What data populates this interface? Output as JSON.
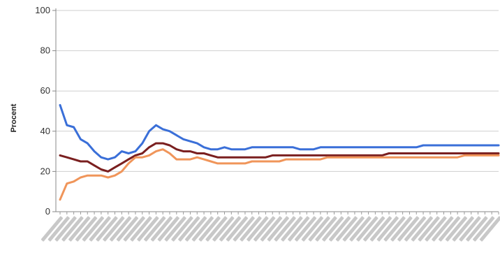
{
  "chart_data": {
    "type": "line",
    "title": "",
    "xlabel": "",
    "ylabel": "Procent",
    "ylim": [
      0,
      100
    ],
    "yticks": [
      "0",
      "20",
      "40",
      "60",
      "80",
      "100"
    ],
    "grid": true,
    "legend": "none",
    "x_count": 65,
    "x_labels_note_hidden": true,
    "series": [
      {
        "color": "#3a6fd8",
        "values": [
          53,
          43,
          42,
          36,
          34,
          30,
          27,
          26,
          27,
          30,
          29,
          30,
          34,
          40,
          43,
          41,
          40,
          38,
          36,
          35,
          34,
          32,
          31,
          31,
          32,
          31,
          31,
          31,
          32,
          32,
          32,
          32,
          32,
          32,
          32,
          31,
          31,
          31,
          32,
          32,
          32,
          32,
          32,
          32,
          32,
          32,
          32,
          32,
          32,
          32,
          32,
          32,
          32,
          33,
          33,
          33,
          33,
          33,
          33,
          33,
          33,
          33,
          33,
          33,
          33
        ]
      },
      {
        "color": "#7a1f1f",
        "values": [
          28,
          27,
          26,
          25,
          25,
          23,
          21,
          20,
          22,
          24,
          26,
          28,
          29,
          32,
          34,
          34,
          33,
          31,
          30,
          30,
          29,
          29,
          28,
          27,
          27,
          27,
          27,
          27,
          27,
          27,
          27,
          28,
          28,
          28,
          28,
          28,
          28,
          28,
          28,
          28,
          28,
          28,
          28,
          28,
          28,
          28,
          28,
          28,
          29,
          29,
          29,
          29,
          29,
          29,
          29,
          29,
          29,
          29,
          29,
          29,
          29,
          29,
          29,
          29,
          29
        ]
      },
      {
        "color": "#f0955a",
        "values": [
          6,
          14,
          15,
          17,
          18,
          18,
          18,
          17,
          18,
          20,
          24,
          27,
          27,
          28,
          30,
          31,
          29,
          26,
          26,
          26,
          27,
          26,
          25,
          24,
          24,
          24,
          24,
          24,
          25,
          25,
          25,
          25,
          25,
          26,
          26,
          26,
          26,
          26,
          26,
          27,
          27,
          27,
          27,
          27,
          27,
          27,
          27,
          27,
          27,
          27,
          27,
          27,
          27,
          27,
          27,
          27,
          27,
          27,
          27,
          28,
          28,
          28,
          28,
          28,
          28
        ]
      }
    ]
  }
}
